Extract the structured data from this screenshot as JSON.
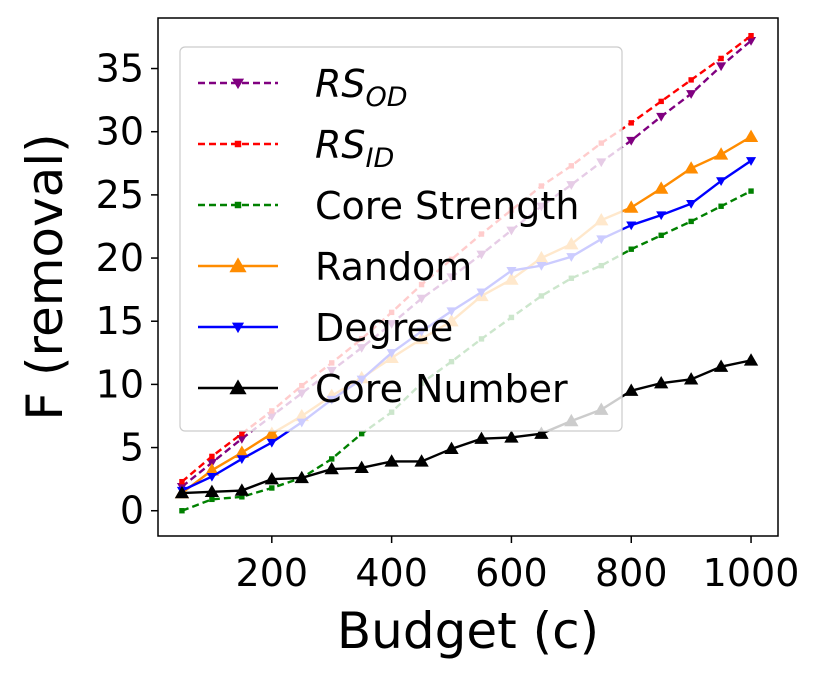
{
  "chart_data": {
    "type": "line",
    "xlabel": "Budget (c)",
    "ylabel": "F (removal)",
    "xlim": [
      10,
      1045
    ],
    "ylim": [
      -2,
      39
    ],
    "x_ticks": [
      200,
      400,
      600,
      800,
      1000
    ],
    "y_ticks": [
      0,
      5,
      10,
      15,
      20,
      25,
      30,
      35
    ],
    "legend_position": "upper-left",
    "x": [
      50,
      100,
      150,
      200,
      250,
      300,
      350,
      400,
      450,
      500,
      550,
      600,
      650,
      700,
      750,
      800,
      850,
      900,
      950,
      1000
    ],
    "series": [
      {
        "name": "RS",
        "subscript": "OD",
        "color": "#800080",
        "dashed": true,
        "marker": "triangle-down",
        "values": [
          1.9,
          3.8,
          5.7,
          7.5,
          9.3,
          11.1,
          12.9,
          14.8,
          16.8,
          18.5,
          20.3,
          22.2,
          24.1,
          25.8,
          27.6,
          29.3,
          31.2,
          33.0,
          35.2,
          37.2
        ]
      },
      {
        "name": "RS",
        "subscript": "ID",
        "color": "#ff0000",
        "dashed": true,
        "marker": "square",
        "values": [
          2.3,
          4.3,
          6.1,
          7.9,
          9.9,
          11.7,
          13.6,
          15.7,
          17.9,
          19.9,
          21.9,
          23.8,
          25.7,
          27.3,
          29.1,
          30.7,
          32.4,
          34.1,
          35.8,
          37.6
        ]
      },
      {
        "name": "Core Strength",
        "color": "#008000",
        "dashed": true,
        "marker": "square",
        "values": [
          0.0,
          0.9,
          1.1,
          1.8,
          2.6,
          4.1,
          6.1,
          7.8,
          10.1,
          11.8,
          13.6,
          15.3,
          17.0,
          18.4,
          19.4,
          20.7,
          21.8,
          22.9,
          24.1,
          25.3
        ]
      },
      {
        "name": "Random",
        "color": "#ff8c00",
        "dashed": false,
        "marker": "triangle-up",
        "values": [
          1.4,
          3.2,
          4.6,
          6.1,
          7.5,
          9.1,
          10.5,
          12.1,
          13.6,
          15.0,
          17.0,
          18.3,
          20.0,
          21.1,
          23.0,
          24.0,
          25.5,
          27.1,
          28.2,
          29.6
        ]
      },
      {
        "name": "Degree",
        "color": "#0000ff",
        "dashed": false,
        "marker": "triangle-down",
        "values": [
          1.6,
          2.7,
          4.1,
          5.4,
          7.0,
          8.8,
          10.4,
          12.5,
          14.2,
          15.8,
          17.3,
          19.0,
          19.4,
          20.1,
          21.5,
          22.6,
          23.4,
          24.3,
          26.1,
          27.7
        ]
      },
      {
        "name": "Core Number",
        "color": "#000000",
        "dashed": false,
        "marker": "triangle-up",
        "values": [
          1.4,
          1.5,
          1.6,
          2.5,
          2.6,
          3.3,
          3.4,
          3.9,
          3.9,
          4.9,
          5.7,
          5.8,
          6.1,
          7.1,
          8.0,
          9.5,
          10.1,
          10.4,
          11.4,
          11.9
        ]
      }
    ]
  }
}
